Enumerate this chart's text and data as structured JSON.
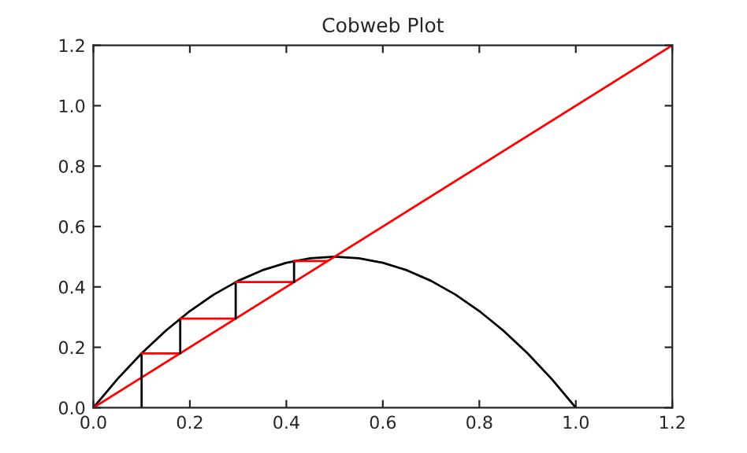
{
  "chart_data": {
    "type": "line",
    "title": "Cobweb Plot",
    "xlim": [
      0,
      1.2
    ],
    "ylim": [
      0,
      1.2
    ],
    "xticks": [
      {
        "value": 0,
        "label": "0.0"
      },
      {
        "value": 0.2,
        "label": "0.2"
      },
      {
        "value": 0.4,
        "label": "0.4"
      },
      {
        "value": 0.6,
        "label": "0.6"
      },
      {
        "value": 0.8,
        "label": "0.8"
      },
      {
        "value": 1.0,
        "label": "1.0"
      },
      {
        "value": 1.2,
        "label": "1.2"
      }
    ],
    "yticks": [
      {
        "value": 0,
        "label": "0.0"
      },
      {
        "value": 0.2,
        "label": "0.2"
      },
      {
        "value": 0.4,
        "label": "0.4"
      },
      {
        "value": 0.6,
        "label": "0.6"
      },
      {
        "value": 0.8,
        "label": "0.8"
      },
      {
        "value": 1.0,
        "label": "1.0"
      },
      {
        "value": 1.2,
        "label": "1.2"
      }
    ],
    "grid": false,
    "legend": false,
    "marker": "none",
    "line_style": "solid",
    "series": [
      {
        "color": "#000000",
        "x": [
          0,
          0.05,
          0.1,
          0.15,
          0.2,
          0.25,
          0.3,
          0.35,
          0.4,
          0.45,
          0.5,
          0.55,
          0.6,
          0.65,
          0.7,
          0.75,
          0.8,
          0.85,
          0.9,
          0.95,
          1.0
        ],
        "values": [
          0,
          0.095,
          0.18,
          0.255,
          0.32,
          0.375,
          0.42,
          0.455,
          0.48,
          0.495,
          0.5,
          0.495,
          0.48,
          0.455,
          0.42,
          0.375,
          0.32,
          0.255,
          0.18,
          0.095,
          0
        ]
      },
      {
        "color": "#ff0000",
        "x": [
          0,
          1.2
        ],
        "values": [
          0,
          1.2
        ]
      },
      {
        "color": "#000000",
        "x": [
          0.1,
          0.1
        ],
        "values": [
          0,
          0.18
        ]
      },
      {
        "color": "#ff0000",
        "x": [
          0.1,
          0.18
        ],
        "values": [
          0.18,
          0.18
        ]
      },
      {
        "color": "#000000",
        "x": [
          0.18,
          0.18
        ],
        "values": [
          0.18,
          0.295
        ]
      },
      {
        "color": "#ff0000",
        "x": [
          0.18,
          0.295
        ],
        "values": [
          0.295,
          0.295
        ]
      },
      {
        "color": "#000000",
        "x": [
          0.295,
          0.295
        ],
        "values": [
          0.295,
          0.416
        ]
      },
      {
        "color": "#ff0000",
        "x": [
          0.295,
          0.416
        ],
        "values": [
          0.416,
          0.416
        ]
      },
      {
        "color": "#000000",
        "x": [
          0.416,
          0.416
        ],
        "values": [
          0.416,
          0.486
        ]
      },
      {
        "color": "#ff0000",
        "x": [
          0.416,
          0.486
        ],
        "values": [
          0.486,
          0.486
        ]
      }
    ]
  }
}
